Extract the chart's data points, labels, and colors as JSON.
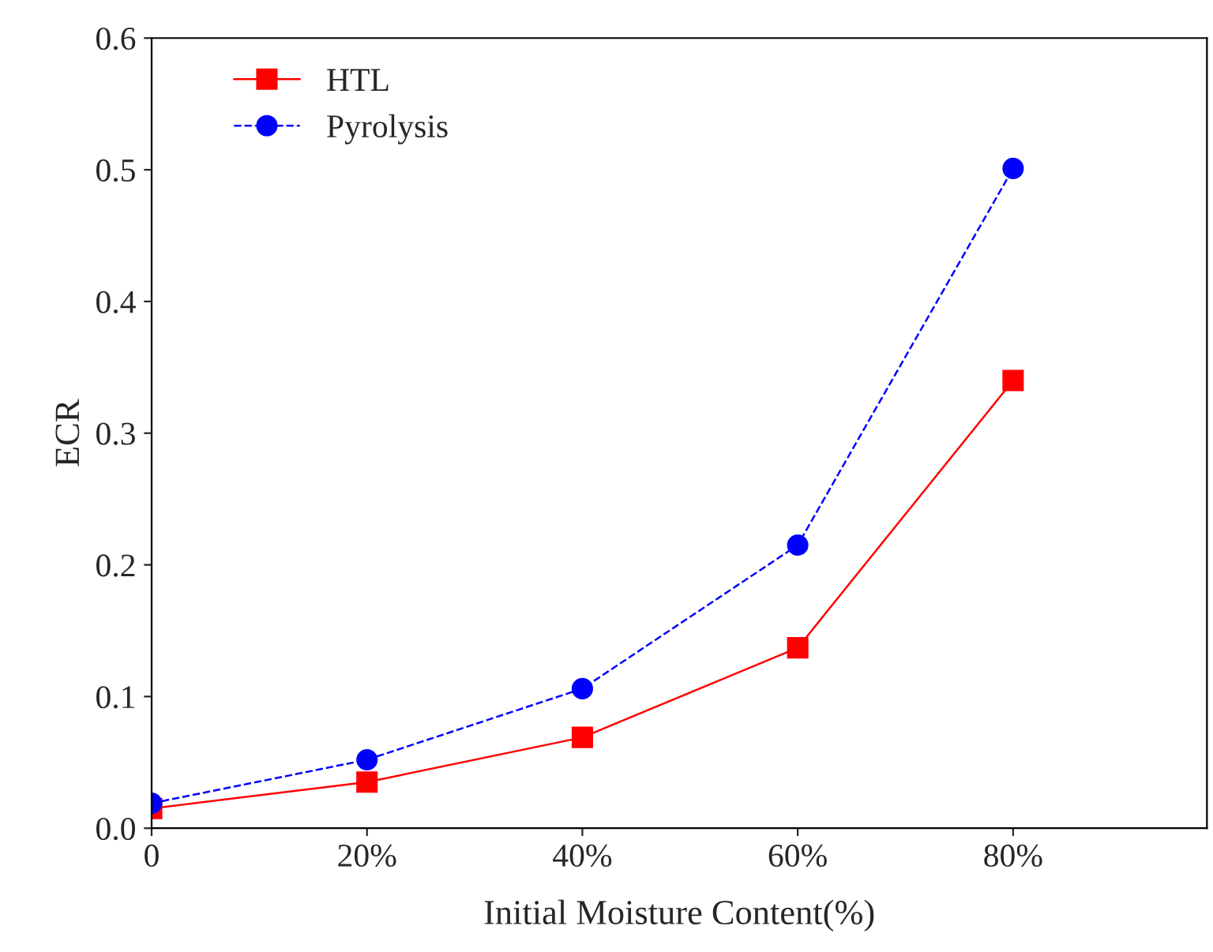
{
  "chart_data": {
    "type": "line",
    "xlabel": "Initial Moisture Content(%)",
    "ylabel": "ECR",
    "x": [
      0,
      20,
      40,
      60,
      80
    ],
    "series": [
      {
        "name": "HTL",
        "color": "#ff0000",
        "values": [
          0.015,
          0.035,
          0.069,
          0.137,
          0.34
        ],
        "marker": "square",
        "line_style": "solid"
      },
      {
        "name": "Pyrolysis",
        "color": "#0000ff",
        "values": [
          0.019,
          0.052,
          0.106,
          0.215,
          0.501
        ],
        "marker": "circle",
        "line_style": "dashed"
      }
    ],
    "xlim": [
      0,
      98
    ],
    "xticks": [
      0,
      {
        "value": 20,
        "label": "20%"
      },
      {
        "value": 40,
        "label": "40%"
      },
      {
        "value": 60,
        "label": "60%"
      },
      {
        "value": 80,
        "label": "80%"
      }
    ],
    "ylim": [
      0,
      0.6
    ],
    "yticks": [
      {
        "value": 0,
        "label": "0.0"
      },
      0.1,
      0.2,
      0.3,
      0.4,
      0.5,
      0.6
    ],
    "grid": false,
    "legend": "top left"
  }
}
